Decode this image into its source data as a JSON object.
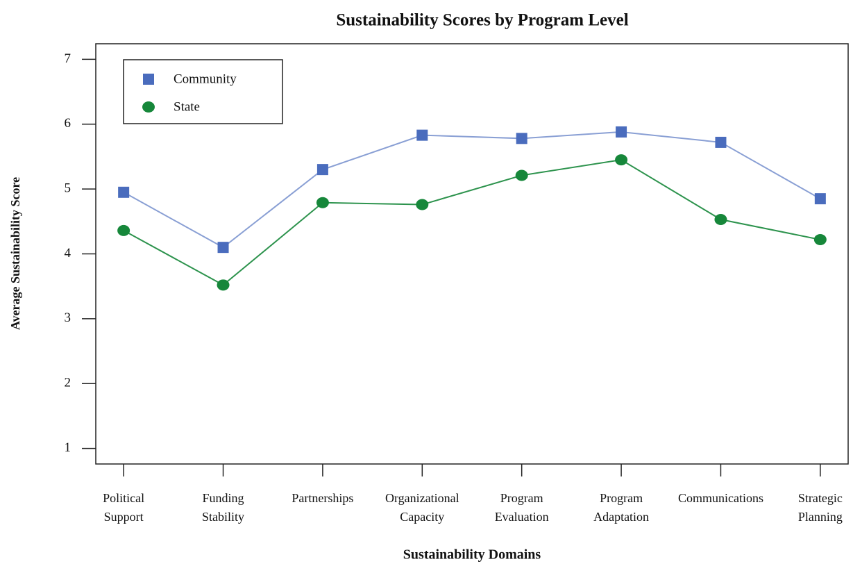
{
  "chart_data": {
    "type": "line",
    "title": "Sustainability Scores by Program Level",
    "x_label": "Sustainability Domains",
    "y_label": "Average Sustainability Score",
    "categories": [
      "Political\nSupport",
      "Funding\nStability",
      "Partnerships",
      "Organizational\nCapacity",
      "Program\nEvaluation",
      "Program\nAdaptation",
      "Communications",
      "Strategic\nPlanning"
    ],
    "series": [
      {
        "name": "Community",
        "color": "#4a6cbd",
        "marker": "square",
        "values": [
          4.95,
          4.1,
          5.3,
          5.83,
          5.78,
          5.88,
          5.72,
          4.85
        ]
      },
      {
        "name": "State",
        "color": "#16873a",
        "marker": "circle",
        "values": [
          4.36,
          3.52,
          4.79,
          4.76,
          5.21,
          5.45,
          4.53,
          4.22
        ]
      }
    ],
    "ylim": [
      0.76,
      7.24
    ],
    "yticks": [
      1,
      2,
      3,
      4,
      5,
      6,
      7
    ],
    "legend": "top-left",
    "grid": false
  }
}
